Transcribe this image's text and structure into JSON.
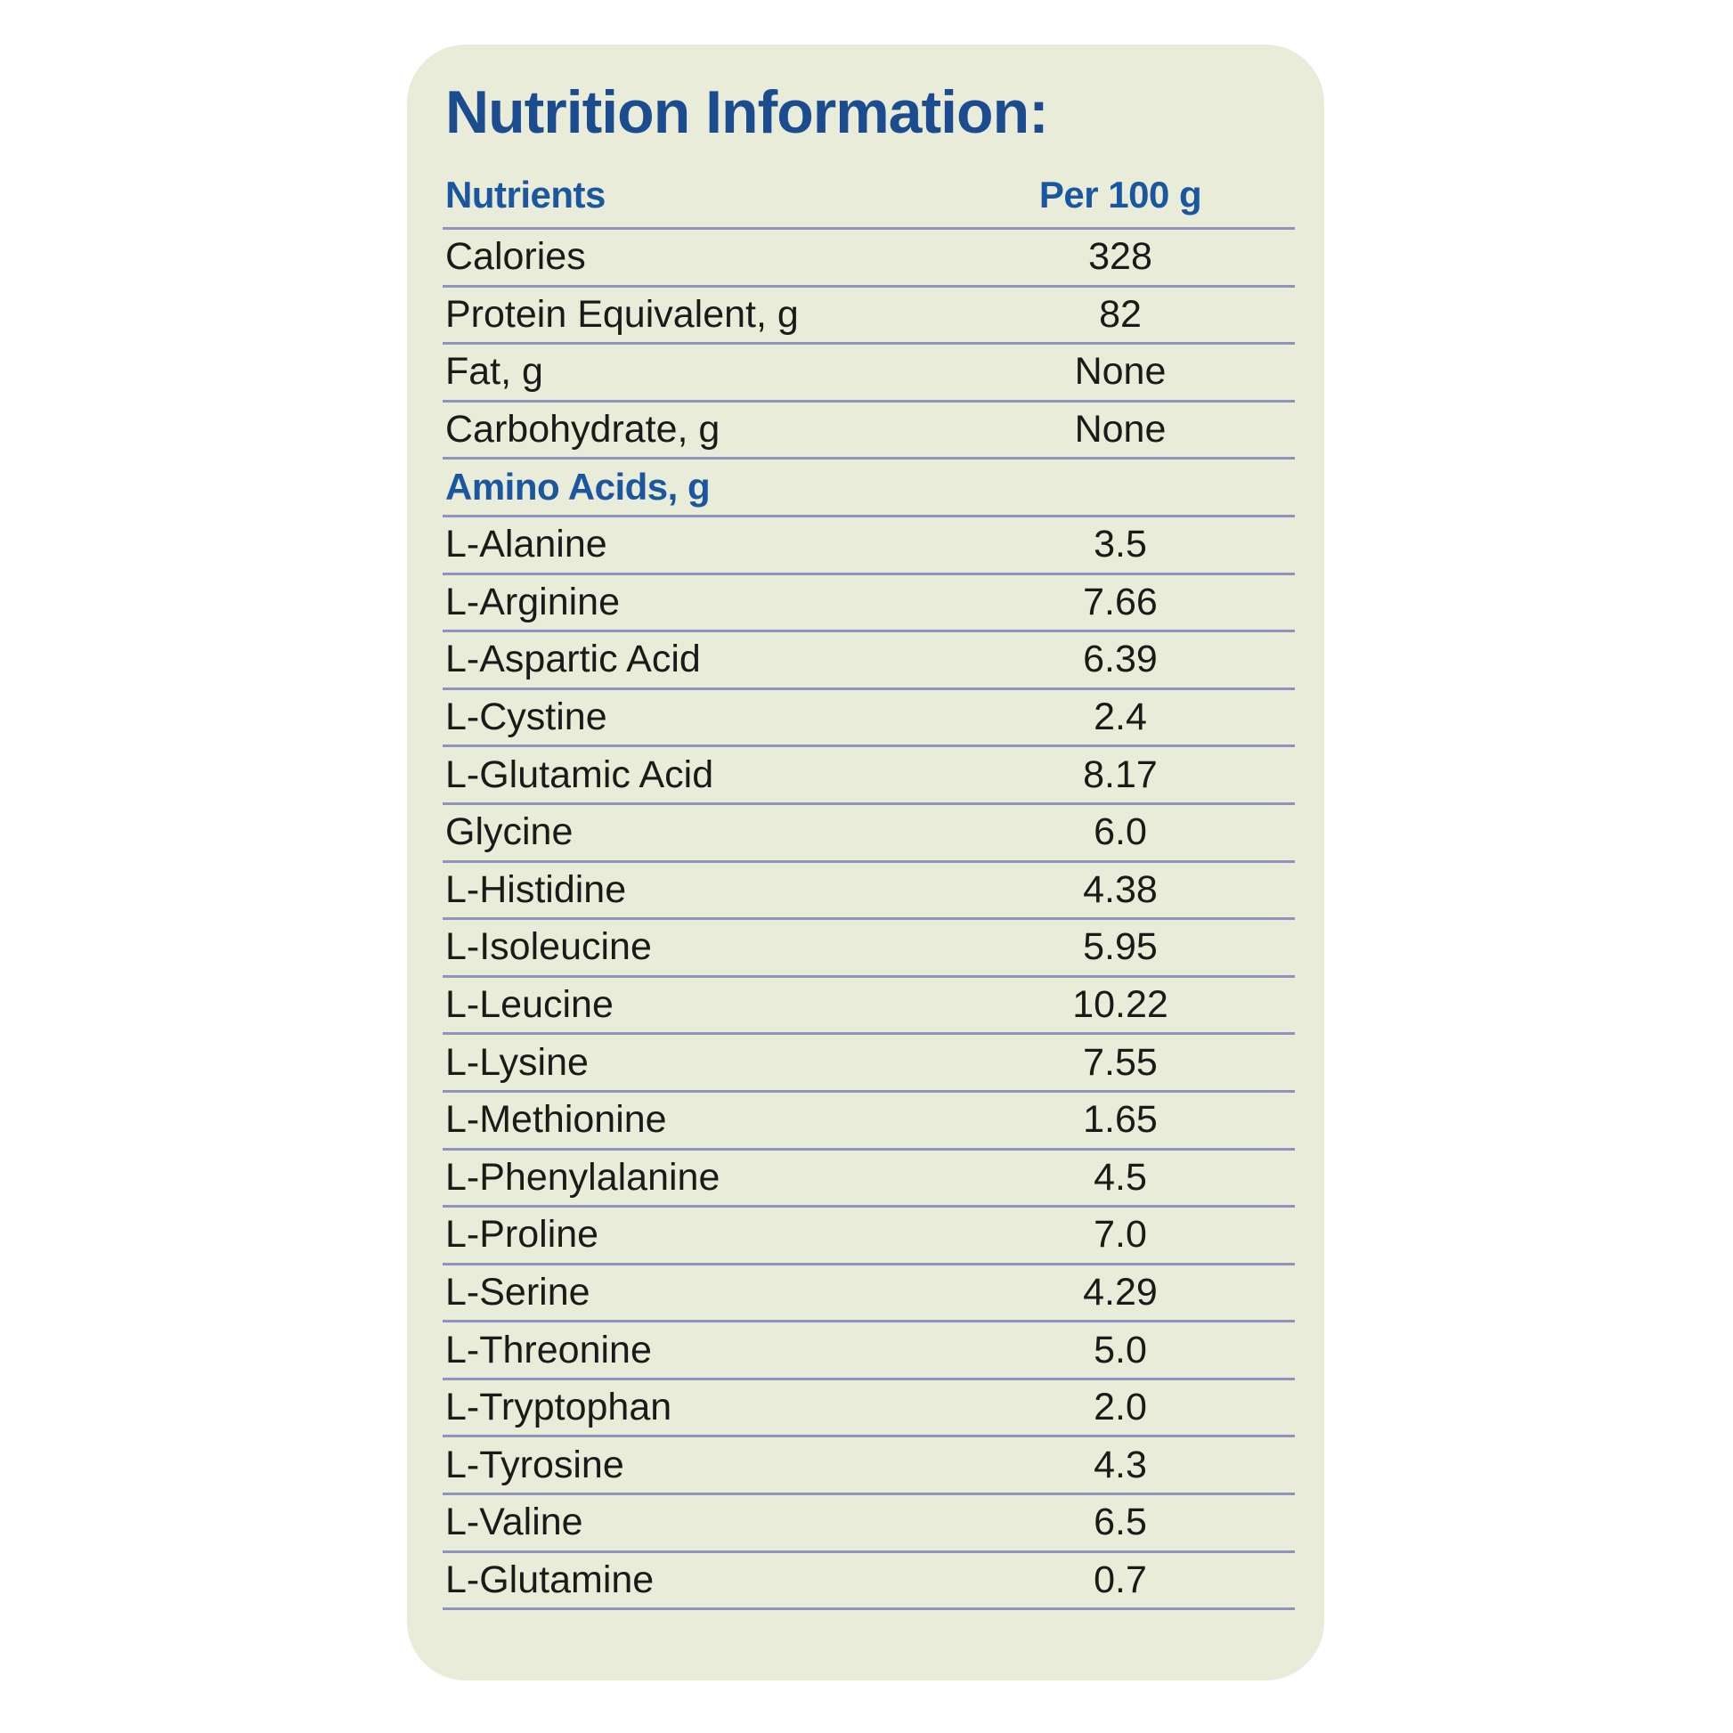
{
  "panel": {
    "title": "Nutrition Information:"
  },
  "table": {
    "columns": [
      "Nutrients",
      "Per 100 g"
    ],
    "nutrients": [
      {
        "label": "Calories",
        "value": "328"
      },
      {
        "label": "Protein Equivalent, g",
        "value": "82"
      },
      {
        "label": "Fat, g",
        "value": "None"
      },
      {
        "label": "Carbohydrate, g",
        "value": "None"
      }
    ],
    "section_header": "Amino Acids, g",
    "amino_acids": [
      {
        "label": "L-Alanine",
        "value": "3.5"
      },
      {
        "label": "L-Arginine",
        "value": "7.66"
      },
      {
        "label": "L-Aspartic Acid",
        "value": "6.39"
      },
      {
        "label": "L-Cystine",
        "value": "2.4"
      },
      {
        "label": "L-Glutamic Acid",
        "value": "8.17"
      },
      {
        "label": "Glycine",
        "value": "6.0"
      },
      {
        "label": "L-Histidine",
        "value": "4.38"
      },
      {
        "label": "L-Isoleucine",
        "value": "5.95"
      },
      {
        "label": "L-Leucine",
        "value": "10.22"
      },
      {
        "label": "L-Lysine",
        "value": "7.55"
      },
      {
        "label": "L-Methionine",
        "value": "1.65"
      },
      {
        "label": "L-Phenylalanine",
        "value": "4.5"
      },
      {
        "label": "L-Proline",
        "value": "7.0"
      },
      {
        "label": "L-Serine",
        "value": "4.29"
      },
      {
        "label": "L-Threonine",
        "value": "5.0"
      },
      {
        "label": "L-Tryptophan",
        "value": "2.0"
      },
      {
        "label": "L-Tyrosine",
        "value": "4.3"
      },
      {
        "label": "L-Valine",
        "value": "6.5"
      },
      {
        "label": "L-Glutamine",
        "value": "0.7"
      }
    ]
  },
  "colors": {
    "panel_background": "#e9ecd8",
    "title_blue": "#1b4c8f",
    "header_blue": "#1a57a0",
    "body_text": "#1b1a19",
    "divider_line": "#9093bb"
  }
}
